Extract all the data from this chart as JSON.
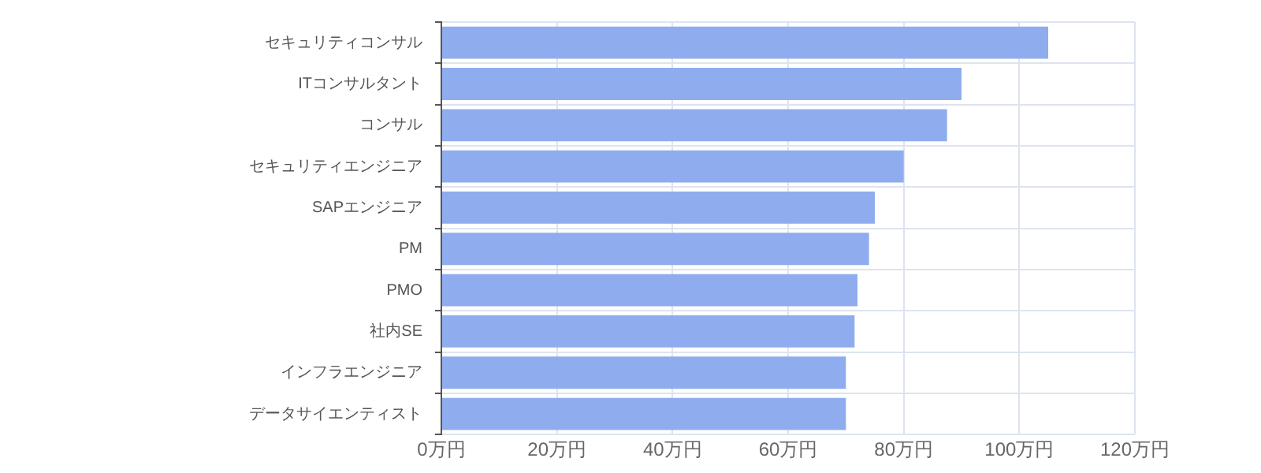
{
  "chart_data": {
    "type": "bar",
    "orientation": "horizontal",
    "categories": [
      "セキュリティコンサル",
      "ITコンサルタント",
      "コンサル",
      "セキュリティエンジニア",
      "SAPエンジニア",
      "PM",
      "PMO",
      "社内SE",
      "インフラエンジニア",
      "データサイエンティスト"
    ],
    "values": [
      105,
      90,
      87.5,
      80,
      75,
      74,
      72,
      71.5,
      70,
      70
    ],
    "color": "#8fadee",
    "xlim": [
      0,
      120
    ],
    "xticks": [
      {
        "value": 0,
        "label": "0万円"
      },
      {
        "value": 20,
        "label": "20万円"
      },
      {
        "value": 40,
        "label": "40万円"
      },
      {
        "value": 60,
        "label": "60万円"
      },
      {
        "value": 80,
        "label": "80万円"
      },
      {
        "value": 100,
        "label": "100万円"
      },
      {
        "value": 120,
        "label": "120万円"
      }
    ],
    "grid": true,
    "legend": false
  }
}
